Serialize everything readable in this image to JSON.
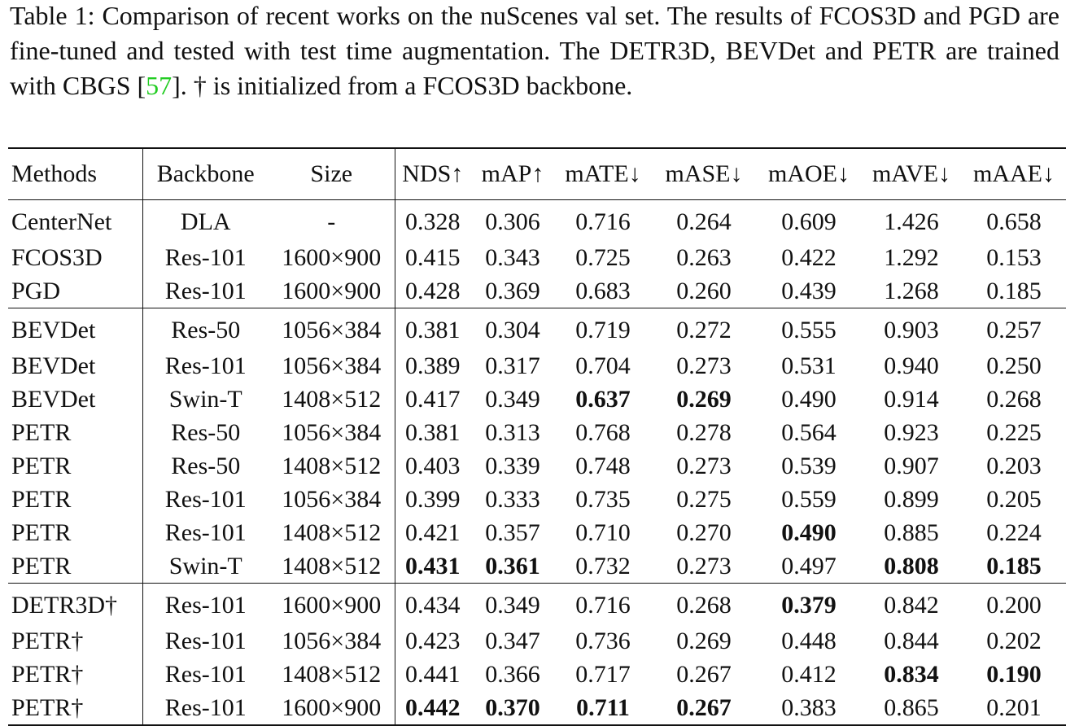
{
  "caption": {
    "text_before": "Table 1: Comparison of recent works on the nuScenes val set. The results of FCOS3D and PGD are fine-tuned and tested with test time augmentation. The DETR3D, BEVDet and PETR are trained with CBGS [",
    "reference": "57",
    "text_after": "]. † is initialized from a FCOS3D backbone."
  },
  "table": {
    "header": [
      "Methods",
      "Backbone",
      "Size",
      "NDS↑",
      "mAP↑",
      "mATE↓",
      "mASE↓",
      "mAOE↓",
      "mAVE↓",
      "mAAE↓"
    ],
    "groups": [
      {
        "rows": [
          [
            "CenterNet",
            "DLA",
            "-",
            "0.328",
            "0.306",
            "0.716",
            "0.264",
            "0.609",
            "1.426",
            "0.658"
          ],
          [
            "FCOS3D",
            "Res-101",
            "1600×900",
            "0.415",
            "0.343",
            "0.725",
            "0.263",
            "0.422",
            "1.292",
            "0.153"
          ],
          [
            "PGD",
            "Res-101",
            "1600×900",
            "0.428",
            "0.369",
            "0.683",
            "0.260",
            "0.439",
            "1.268",
            "0.185"
          ]
        ]
      },
      {
        "rows": [
          [
            "BEVDet",
            "Res-50",
            "1056×384",
            "0.381",
            "0.304",
            "0.719",
            "0.272",
            "0.555",
            "0.903",
            "0.257"
          ],
          [
            "BEVDet",
            "Res-101",
            "1056×384",
            "0.389",
            "0.317",
            "0.704",
            "0.273",
            "0.531",
            "0.940",
            "0.250"
          ],
          [
            "BEVDet",
            "Swin-T",
            "1408×512",
            "0.417",
            "0.349",
            {
              "text": "0.637",
              "bold": true
            },
            {
              "text": "0.269",
              "bold": true
            },
            "0.490",
            "0.914",
            "0.268"
          ],
          [
            "PETR",
            "Res-50",
            "1056×384",
            "0.381",
            "0.313",
            "0.768",
            "0.278",
            "0.564",
            "0.923",
            "0.225"
          ],
          [
            "PETR",
            "Res-50",
            "1408×512",
            "0.403",
            "0.339",
            "0.748",
            "0.273",
            "0.539",
            "0.907",
            "0.203"
          ],
          [
            "PETR",
            "Res-101",
            "1056×384",
            "0.399",
            "0.333",
            "0.735",
            "0.275",
            "0.559",
            "0.899",
            "0.205"
          ],
          [
            "PETR",
            "Res-101",
            "1408×512",
            "0.421",
            "0.357",
            "0.710",
            "0.270",
            {
              "text": "0.490",
              "bold": true
            },
            "0.885",
            "0.224"
          ],
          [
            "PETR",
            "Swin-T",
            "1408×512",
            {
              "text": "0.431",
              "bold": true
            },
            {
              "text": "0.361",
              "bold": true
            },
            "0.732",
            "0.273",
            "0.497",
            {
              "text": "0.808",
              "bold": true
            },
            {
              "text": "0.185",
              "bold": true
            }
          ]
        ]
      },
      {
        "rows": [
          [
            "DETR3D†",
            "Res-101",
            "1600×900",
            "0.434",
            "0.349",
            "0.716",
            "0.268",
            {
              "text": "0.379",
              "bold": true
            },
            "0.842",
            "0.200"
          ],
          [
            "PETR†",
            "Res-101",
            "1056×384",
            "0.423",
            "0.347",
            "0.736",
            "0.269",
            "0.448",
            "0.844",
            "0.202"
          ],
          [
            "PETR†",
            "Res-101",
            "1408×512",
            "0.441",
            "0.366",
            "0.717",
            "0.267",
            "0.412",
            {
              "text": "0.834",
              "bold": true
            },
            {
              "text": "0.190",
              "bold": true
            }
          ],
          [
            "PETR†",
            "Res-101",
            "1600×900",
            {
              "text": "0.442",
              "bold": true
            },
            {
              "text": "0.370",
              "bold": true
            },
            {
              "text": "0.711",
              "bold": true
            },
            {
              "text": "0.267",
              "bold": true
            },
            "0.383",
            "0.865",
            "0.201"
          ]
        ]
      }
    ]
  }
}
